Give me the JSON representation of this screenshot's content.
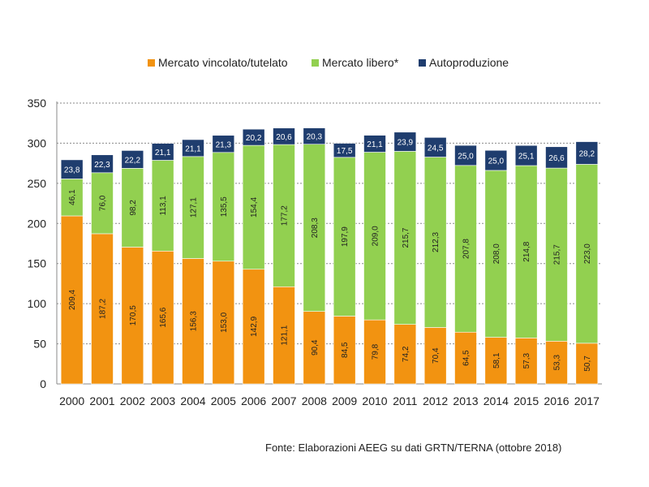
{
  "chart_data": {
    "type": "bar",
    "stacked": true,
    "categories": [
      "2000",
      "2001",
      "2002",
      "2003",
      "2004",
      "2005",
      "2006",
      "2007",
      "2008",
      "2009",
      "2010",
      "2011",
      "2012",
      "2013",
      "2014",
      "2015",
      "2016",
      "2017"
    ],
    "series": [
      {
        "name": "Mercato vincolato/tutelato",
        "color": "#f29311",
        "values": [
          209.4,
          187.2,
          170.5,
          165.6,
          156.3,
          153.0,
          142.9,
          121.1,
          90.4,
          84.5,
          79.8,
          74.2,
          70.4,
          64.5,
          58.1,
          57.3,
          53.3,
          50.7
        ],
        "labels": [
          "209,4",
          "187,2",
          "170,5",
          "165,6",
          "156,3",
          "153,0",
          "142,9",
          "121,1",
          "90,4",
          "84,5",
          "79,8",
          "74,2",
          "70,4",
          "64,5",
          "58,1",
          "57,3",
          "53,3",
          "50,7"
        ]
      },
      {
        "name": "Mercato libero*",
        "color": "#92d050",
        "values": [
          46.1,
          76.0,
          98.2,
          113.1,
          127.1,
          135.5,
          154.4,
          177.2,
          208.3,
          197.9,
          209.0,
          215.7,
          212.3,
          207.8,
          208.0,
          214.8,
          215.7,
          223.0
        ],
        "labels": [
          "46,1",
          "76,0",
          "98,2",
          "113,1",
          "127,1",
          "135,5",
          "154,4",
          "177,2",
          "208,3",
          "197,9",
          "209,0",
          "215,7",
          "212,3",
          "207,8",
          "208,0",
          "214,8",
          "215,7",
          "223,0"
        ]
      },
      {
        "name": "Autoproduzione",
        "color": "#1f3d6e",
        "values": [
          23.8,
          22.3,
          22.2,
          21.1,
          21.1,
          21.3,
          20.2,
          20.6,
          20.3,
          17.5,
          21.1,
          23.9,
          24.5,
          25.0,
          25.0,
          25.1,
          26.6,
          28.2
        ],
        "labels": [
          "23,8",
          "22,3",
          "22,2",
          "21,1",
          "21,1",
          "21,3",
          "20,2",
          "20,6",
          "20,3",
          "17,5",
          "21,1",
          "23,9",
          "24,5",
          "25,0",
          "25,0",
          "25,1",
          "26,6",
          "28,2"
        ]
      }
    ],
    "ylim": [
      0,
      350
    ],
    "yticks": [
      "0",
      "50",
      "100",
      "150",
      "200",
      "250",
      "300",
      "350"
    ],
    "ytick_values": [
      0,
      50,
      100,
      150,
      200,
      250,
      300,
      350
    ],
    "grid": "dashed horizontal",
    "legend": "top-center",
    "title": "",
    "xlabel": "",
    "ylabel": ""
  },
  "source_note": "Fonte: Elaborazioni AEEG su dati GRTN/TERNA (ottobre 2018)"
}
